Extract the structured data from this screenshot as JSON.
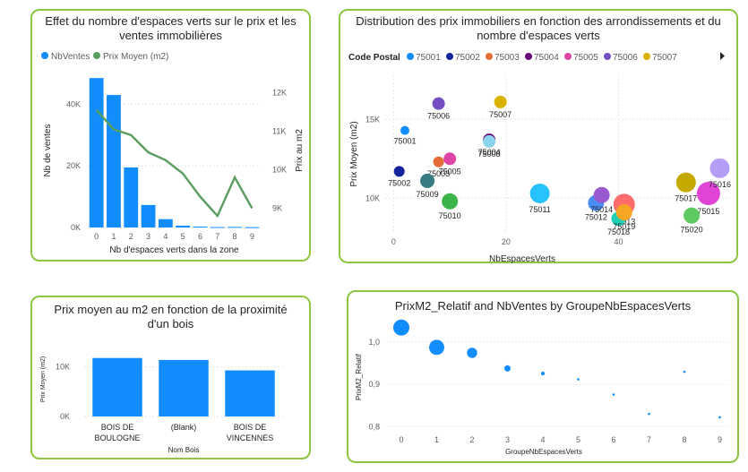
{
  "chart_data": [
    {
      "type": "bar",
      "title": "Effet du nombre d'espaces verts sur le prix et les ventes immobilières",
      "xlabel": "Nb d'espaces verts dans la zone",
      "ylabel": "Nb de ventes",
      "y2label": "Prix au m2",
      "legend": [
        "NbVentes",
        "Prix Moyen (m2)"
      ],
      "categories": [
        "0",
        "1",
        "2",
        "3",
        "4",
        "5",
        "6",
        "7",
        "8",
        "9"
      ],
      "ylim": [
        0,
        50000
      ],
      "y2lim": [
        8500,
        12500
      ],
      "yticks": [
        "0K",
        "20K",
        "40K"
      ],
      "y2ticks": [
        "9K",
        "10K",
        "11K",
        "12K"
      ],
      "series": [
        {
          "name": "NbVentes",
          "type": "bar",
          "color": "#118DFF",
          "values": [
            48500,
            43000,
            19500,
            7300,
            2700,
            600,
            300,
            150,
            200,
            100
          ]
        },
        {
          "name": "Prix Moyen (m2)",
          "type": "line",
          "color": "#5a9e5f",
          "axis": "secondary",
          "values": [
            11550,
            11050,
            10900,
            10450,
            10250,
            9900,
            9300,
            8800,
            9800,
            9000
          ]
        }
      ]
    },
    {
      "type": "scatter",
      "title": "Distribution des prix immobiliers en fonction des arrondissements et du nombre d'espaces verts",
      "xlabel": "NbEspacesVerts",
      "ylabel": "Prix Moyen (m2)",
      "legend_title": "Code Postal",
      "legend": [
        {
          "name": "75001",
          "color": "#118DFF"
        },
        {
          "name": "75002",
          "color": "#12239E"
        },
        {
          "name": "75003",
          "color": "#E66C37"
        },
        {
          "name": "75004",
          "color": "#6B007B"
        },
        {
          "name": "75005",
          "color": "#E044A7"
        },
        {
          "name": "75006",
          "color": "#744EC2"
        },
        {
          "name": "75007",
          "color": "#D9B300"
        }
      ],
      "xticks": [
        "0",
        "20",
        "40"
      ],
      "yticks": [
        "10K",
        "15K"
      ],
      "xlim": [
        -1.5,
        60
      ],
      "ylim": [
        7800,
        17800
      ],
      "points": [
        {
          "label": "75001",
          "x": 2,
          "y": 14300,
          "r": 5,
          "color": "#118DFF"
        },
        {
          "label": "75002",
          "x": 1,
          "y": 11700,
          "r": 6,
          "color": "#12239E"
        },
        {
          "label": "75003",
          "x": 8,
          "y": 12300,
          "r": 6,
          "color": "#E66C37"
        },
        {
          "label": "75004",
          "x": 17,
          "y": 13700,
          "r": 7,
          "color": "#6B007B"
        },
        {
          "label": "75005",
          "x": 10,
          "y": 12500,
          "r": 7,
          "color": "#E044A7"
        },
        {
          "label": "75006",
          "x": 8,
          "y": 16000,
          "r": 7,
          "color": "#744EC2"
        },
        {
          "label": "75007",
          "x": 19,
          "y": 16100,
          "r": 7,
          "color": "#D9B300"
        },
        {
          "label": "75008",
          "x": 17,
          "y": 13600,
          "r": 7,
          "color": "#8AD4EB"
        },
        {
          "label": "75009",
          "x": 6,
          "y": 11100,
          "r": 8,
          "color": "#377C81"
        },
        {
          "label": "75010",
          "x": 10,
          "y": 9800,
          "r": 9,
          "color": "#3DB449"
        },
        {
          "label": "75011",
          "x": 26,
          "y": 10300,
          "r": 11,
          "color": "#28C2FF"
        },
        {
          "label": "75012",
          "x": 36,
          "y": 9700,
          "r": 9,
          "color": "#4A8DF4"
        },
        {
          "label": "75013",
          "x": 41,
          "y": 9600,
          "r": 12,
          "color": "#FF6C6C"
        },
        {
          "label": "75014",
          "x": 37,
          "y": 10200,
          "r": 9,
          "color": "#9B59D0"
        },
        {
          "label": "75015",
          "x": 56,
          "y": 10300,
          "r": 13,
          "color": "#E044D7"
        },
        {
          "label": "75016",
          "x": 58,
          "y": 11900,
          "r": 11,
          "color": "#B39DF5"
        },
        {
          "label": "75017",
          "x": 52,
          "y": 11000,
          "r": 11,
          "color": "#C5A800"
        },
        {
          "label": "75018",
          "x": 40,
          "y": 8700,
          "r": 8,
          "color": "#1FD1B4"
        },
        {
          "label": "75019",
          "x": 41,
          "y": 9100,
          "r": 9,
          "color": "#F5A623"
        },
        {
          "label": "75020",
          "x": 53,
          "y": 8900,
          "r": 9,
          "color": "#5EC95F"
        }
      ]
    },
    {
      "type": "bar",
      "title": "Prix moyen au m2 en fonction de la proximité d'un bois",
      "xlabel": "Nom Bois",
      "ylabel": "Prix Moyen (m2)",
      "categories": [
        "BOIS DE BOULOGNE",
        "(Blank)",
        "BOIS DE VINCENNES"
      ],
      "category_lines": [
        [
          "BOIS DE",
          "BOULOGNE"
        ],
        [
          "(Blank)"
        ],
        [
          "BOIS DE",
          "VINCENNES"
        ]
      ],
      "values": [
        11800,
        11400,
        9300
      ],
      "ylim": [
        0,
        15000
      ],
      "yticks": [
        "0K",
        "10K"
      ],
      "color": "#118DFF"
    },
    {
      "type": "scatter",
      "title": "PrixM2_Relatif and NbVentes by GroupeNbEspacesVerts",
      "xlabel": "GroupeNbEspacesVerts",
      "ylabel": "PrixM2_Relatif",
      "xticks": [
        "0",
        "1",
        "2",
        "3",
        "4",
        "5",
        "6",
        "7",
        "8",
        "9"
      ],
      "yticks": [
        "0,8",
        "0,9",
        "1,0"
      ],
      "ylim": [
        0.79,
        1.045
      ],
      "color": "#118DFF",
      "points": [
        {
          "x": 0,
          "y": 1.035,
          "size": 48500
        },
        {
          "x": 1,
          "y": 0.988,
          "size": 43000
        },
        {
          "x": 2,
          "y": 0.975,
          "size": 19500
        },
        {
          "x": 3,
          "y": 0.938,
          "size": 7300
        },
        {
          "x": 4,
          "y": 0.926,
          "size": 2700
        },
        {
          "x": 5,
          "y": 0.912,
          "size": 600
        },
        {
          "x": 6,
          "y": 0.876,
          "size": 300
        },
        {
          "x": 7,
          "y": 0.83,
          "size": 150
        },
        {
          "x": 8,
          "y": 0.93,
          "size": 200
        },
        {
          "x": 9,
          "y": 0.822,
          "size": 100
        }
      ]
    }
  ]
}
